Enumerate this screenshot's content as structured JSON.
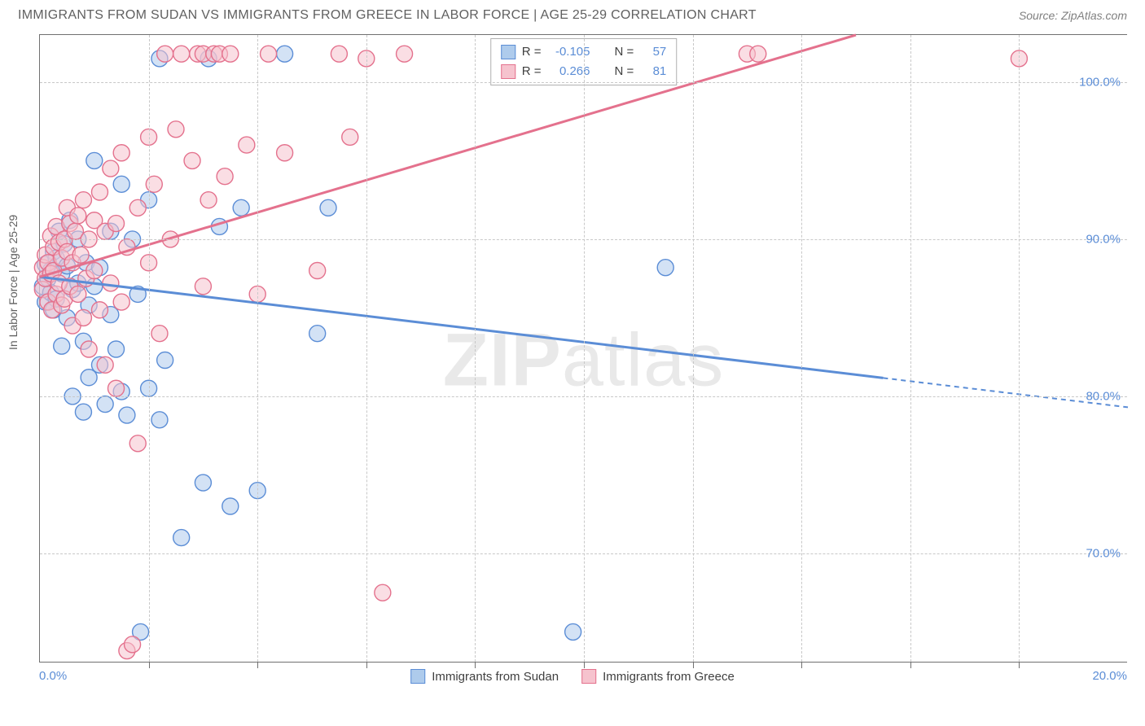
{
  "title": "IMMIGRANTS FROM SUDAN VS IMMIGRANTS FROM GREECE IN LABOR FORCE | AGE 25-29 CORRELATION CHART",
  "source": "Source: ZipAtlas.com",
  "yAxisLabel": "In Labor Force | Age 25-29",
  "watermark_a": "ZIP",
  "watermark_b": "atlas",
  "chart": {
    "type": "scatter",
    "xlim": [
      0,
      20
    ],
    "ylim": [
      63,
      103
    ],
    "yTicks": [
      70,
      80,
      90,
      100
    ],
    "yTickLabels": [
      "70.0%",
      "80.0%",
      "90.0%",
      "100.0%"
    ],
    "xTicks": [
      0,
      20
    ],
    "xTickLabels": [
      "0.0%",
      "20.0%"
    ],
    "xMinorTicks": [
      2,
      4,
      6,
      8,
      10,
      12,
      14,
      16,
      18
    ],
    "background": "#ffffff",
    "grid_color": "#c8c8c8",
    "axis_color": "#707070",
    "marker_radius": 10,
    "marker_stroke_width": 1.4,
    "marker_opacity": 0.55,
    "series": [
      {
        "name": "Immigrants from Sudan",
        "color_fill": "#aecbec",
        "color_stroke": "#5b8dd6",
        "R": "-0.105",
        "N": "57",
        "trend": {
          "x1": 0,
          "y1": 87.6,
          "x2": 20,
          "y2": 79.3,
          "solid_to_x": 15.5
        },
        "points": [
          [
            0.05,
            87.0
          ],
          [
            0.1,
            88.4
          ],
          [
            0.1,
            86.0
          ],
          [
            0.15,
            87.5
          ],
          [
            0.2,
            88.0
          ],
          [
            0.2,
            86.6
          ],
          [
            0.25,
            89.2
          ],
          [
            0.25,
            85.5
          ],
          [
            0.3,
            88.8
          ],
          [
            0.3,
            86.2
          ],
          [
            0.35,
            90.5
          ],
          [
            0.4,
            87.8
          ],
          [
            0.4,
            83.2
          ],
          [
            0.45,
            89.7
          ],
          [
            0.5,
            88.3
          ],
          [
            0.5,
            85.0
          ],
          [
            0.55,
            91.2
          ],
          [
            0.6,
            86.8
          ],
          [
            0.6,
            80.0
          ],
          [
            0.7,
            87.2
          ],
          [
            0.7,
            90.0
          ],
          [
            0.8,
            79.0
          ],
          [
            0.8,
            83.5
          ],
          [
            0.85,
            88.5
          ],
          [
            0.9,
            85.8
          ],
          [
            0.9,
            81.2
          ],
          [
            1.0,
            95.0
          ],
          [
            1.0,
            87.0
          ],
          [
            1.1,
            82.0
          ],
          [
            1.1,
            88.2
          ],
          [
            1.2,
            79.5
          ],
          [
            1.3,
            90.5
          ],
          [
            1.3,
            85.2
          ],
          [
            1.4,
            83.0
          ],
          [
            1.5,
            80.3
          ],
          [
            1.5,
            93.5
          ],
          [
            1.6,
            78.8
          ],
          [
            1.7,
            90.0
          ],
          [
            1.8,
            86.5
          ],
          [
            1.85,
            65.0
          ],
          [
            2.0,
            92.5
          ],
          [
            2.0,
            80.5
          ],
          [
            2.2,
            101.5
          ],
          [
            2.2,
            78.5
          ],
          [
            2.3,
            82.3
          ],
          [
            2.6,
            71.0
          ],
          [
            3.0,
            74.5
          ],
          [
            3.1,
            101.5
          ],
          [
            3.3,
            90.8
          ],
          [
            3.5,
            73.0
          ],
          [
            3.7,
            92.0
          ],
          [
            4.0,
            74.0
          ],
          [
            4.5,
            101.8
          ],
          [
            5.1,
            84.0
          ],
          [
            5.3,
            92.0
          ],
          [
            9.8,
            65.0
          ],
          [
            11.5,
            88.2
          ]
        ]
      },
      {
        "name": "Immigrants from Greece",
        "color_fill": "#f6c3ce",
        "color_stroke": "#e4718d",
        "R": "0.266",
        "N": "81",
        "trend": {
          "x1": 0,
          "y1": 87.6,
          "x2": 15.0,
          "y2": 103.0,
          "solid_to_x": 15.0
        },
        "points": [
          [
            0.05,
            86.8
          ],
          [
            0.05,
            88.2
          ],
          [
            0.1,
            87.5
          ],
          [
            0.1,
            89.0
          ],
          [
            0.15,
            86.0
          ],
          [
            0.15,
            88.5
          ],
          [
            0.2,
            87.8
          ],
          [
            0.2,
            90.2
          ],
          [
            0.22,
            85.5
          ],
          [
            0.25,
            88.0
          ],
          [
            0.25,
            89.5
          ],
          [
            0.3,
            86.5
          ],
          [
            0.3,
            90.8
          ],
          [
            0.35,
            87.2
          ],
          [
            0.35,
            89.8
          ],
          [
            0.4,
            85.8
          ],
          [
            0.4,
            88.8
          ],
          [
            0.45,
            90.0
          ],
          [
            0.45,
            86.2
          ],
          [
            0.5,
            89.2
          ],
          [
            0.5,
            92.0
          ],
          [
            0.55,
            87.0
          ],
          [
            0.55,
            91.0
          ],
          [
            0.6,
            84.5
          ],
          [
            0.6,
            88.5
          ],
          [
            0.65,
            90.5
          ],
          [
            0.7,
            86.5
          ],
          [
            0.7,
            91.5
          ],
          [
            0.75,
            89.0
          ],
          [
            0.8,
            85.0
          ],
          [
            0.8,
            92.5
          ],
          [
            0.85,
            87.5
          ],
          [
            0.9,
            90.0
          ],
          [
            0.9,
            83.0
          ],
          [
            1.0,
            91.2
          ],
          [
            1.0,
            88.0
          ],
          [
            1.1,
            93.0
          ],
          [
            1.1,
            85.5
          ],
          [
            1.2,
            90.5
          ],
          [
            1.2,
            82.0
          ],
          [
            1.3,
            94.5
          ],
          [
            1.3,
            87.2
          ],
          [
            1.4,
            80.5
          ],
          [
            1.4,
            91.0
          ],
          [
            1.5,
            95.5
          ],
          [
            1.5,
            86.0
          ],
          [
            1.6,
            63.8
          ],
          [
            1.6,
            89.5
          ],
          [
            1.7,
            64.2
          ],
          [
            1.8,
            92.0
          ],
          [
            1.8,
            77.0
          ],
          [
            2.0,
            88.5
          ],
          [
            2.0,
            96.5
          ],
          [
            2.1,
            93.5
          ],
          [
            2.2,
            84.0
          ],
          [
            2.3,
            101.8
          ],
          [
            2.4,
            90.0
          ],
          [
            2.5,
            97.0
          ],
          [
            2.6,
            101.8
          ],
          [
            2.8,
            95.0
          ],
          [
            2.9,
            101.8
          ],
          [
            3.0,
            87.0
          ],
          [
            3.0,
            101.8
          ],
          [
            3.1,
            92.5
          ],
          [
            3.2,
            101.8
          ],
          [
            3.3,
            101.8
          ],
          [
            3.4,
            94.0
          ],
          [
            3.5,
            101.8
          ],
          [
            3.8,
            96.0
          ],
          [
            4.0,
            86.5
          ],
          [
            4.2,
            101.8
          ],
          [
            4.5,
            95.5
          ],
          [
            5.1,
            88.0
          ],
          [
            5.5,
            101.8
          ],
          [
            5.7,
            96.5
          ],
          [
            6.0,
            101.5
          ],
          [
            6.3,
            67.5
          ],
          [
            6.7,
            101.8
          ],
          [
            13.0,
            101.8
          ],
          [
            13.2,
            101.8
          ],
          [
            18.0,
            101.5
          ]
        ]
      }
    ]
  },
  "legend": {
    "r_label": "R =",
    "n_label": "N ="
  }
}
